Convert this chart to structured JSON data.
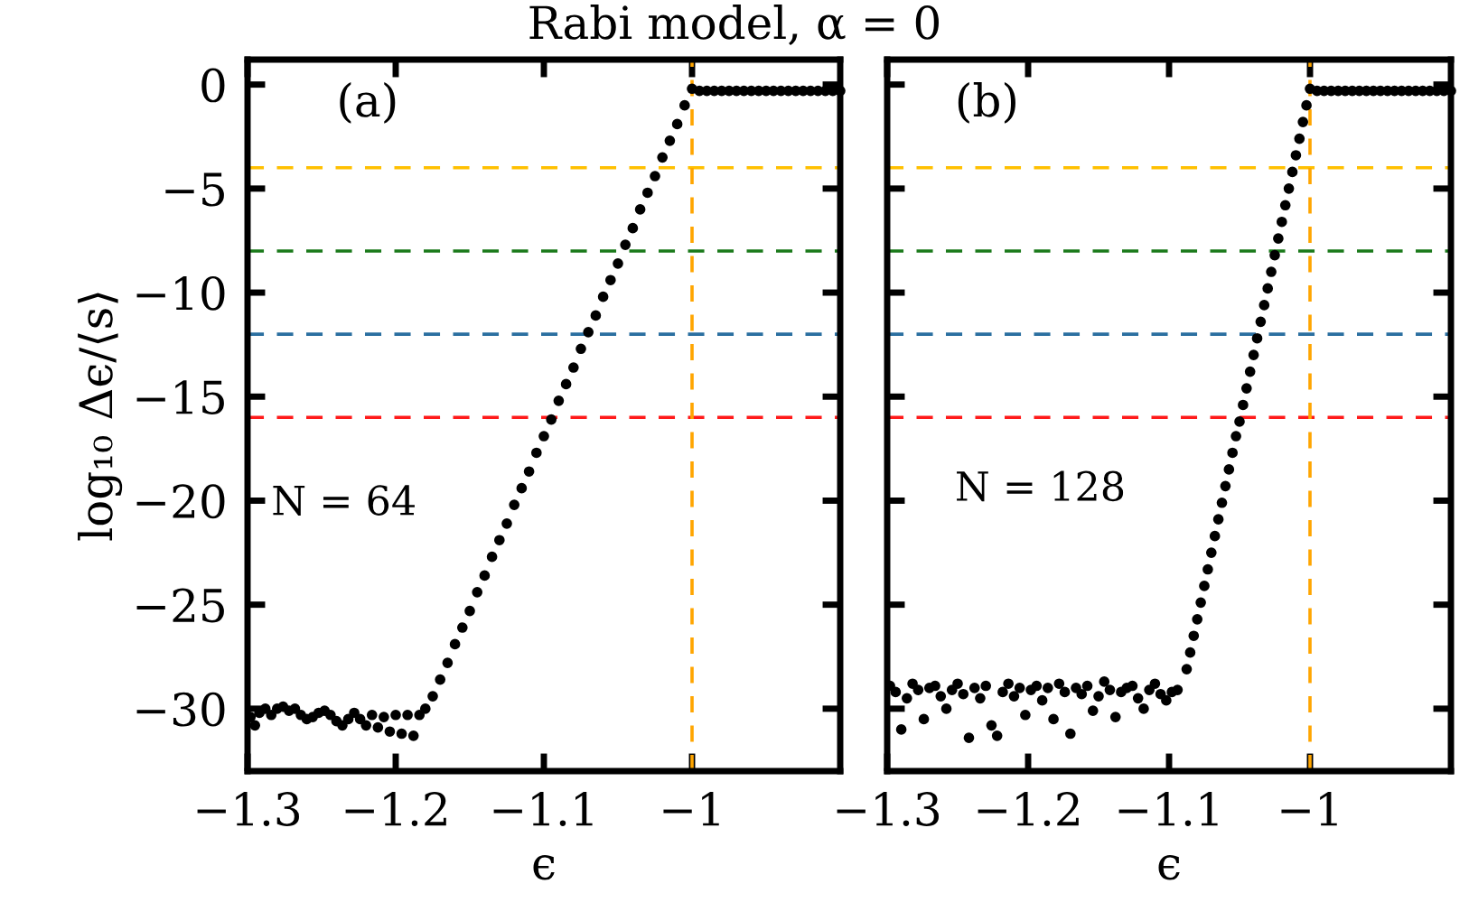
{
  "chart_data": [
    {
      "type": "scatter",
      "title": "Rabi model, α = 0",
      "xlabel": "ϵ",
      "ylabel": "log₁₀ Δϵ/⟨s⟩",
      "marker": "circle",
      "grid": false,
      "annotations": [
        "(a)",
        "N = 64"
      ],
      "xlim": [
        -1.3,
        -0.9
      ],
      "ylim": [
        -33,
        1.2
      ],
      "xticks": [
        {
          "value": -1.3,
          "label": "−1.3"
        },
        {
          "value": -1.2,
          "label": "−1.2"
        },
        {
          "value": -1.1,
          "label": "−1.1"
        },
        {
          "value": -1.0,
          "label": "−1"
        }
      ],
      "yticks": [
        {
          "value": 0,
          "label": "0"
        },
        {
          "value": -5,
          "label": "−5"
        },
        {
          "value": -10,
          "label": "−10"
        },
        {
          "value": -15,
          "label": "−15"
        },
        {
          "value": -20,
          "label": "−20"
        },
        {
          "value": -25,
          "label": "−25"
        },
        {
          "value": -30,
          "label": "−30"
        }
      ],
      "ref_lines": [
        {
          "axis": "y",
          "value": -4,
          "color": "#ffc000",
          "line_style": "dashed"
        },
        {
          "axis": "y",
          "value": -8,
          "color": "#1a7a1a",
          "line_style": "dashed"
        },
        {
          "axis": "y",
          "value": -12,
          "color": "#2a6fa0",
          "line_style": "dashed"
        },
        {
          "axis": "y",
          "value": -16,
          "color": "#ff1a1a",
          "line_style": "dashed"
        },
        {
          "axis": "x",
          "value": -1.0,
          "color": "#ffa500",
          "line_style": "dashed"
        }
      ],
      "series": [
        {
          "color": "#000000",
          "x": [
            -1.298,
            -1.295,
            -1.292,
            -1.288,
            -1.284,
            -1.28,
            -1.276,
            -1.272,
            -1.268,
            -1.264,
            -1.26,
            -1.256,
            -1.252,
            -1.248,
            -1.244,
            -1.24,
            -1.236,
            -1.232,
            -1.228,
            -1.224,
            -1.22,
            -1.216,
            -1.212,
            -1.208,
            -1.204,
            -1.2,
            -1.196,
            -1.192,
            -1.188,
            -1.184,
            -1.18,
            -1.175,
            -1.17,
            -1.165,
            -1.16,
            -1.155,
            -1.15,
            -1.145,
            -1.14,
            -1.135,
            -1.13,
            -1.125,
            -1.12,
            -1.115,
            -1.11,
            -1.105,
            -1.1,
            -1.095,
            -1.09,
            -1.085,
            -1.08,
            -1.075,
            -1.07,
            -1.065,
            -1.06,
            -1.055,
            -1.05,
            -1.045,
            -1.04,
            -1.035,
            -1.03,
            -1.025,
            -1.02,
            -1.015,
            -1.01,
            -1.005,
            -1.0,
            -0.995,
            -0.99,
            -0.985,
            -0.98,
            -0.975,
            -0.97,
            -0.965,
            -0.96,
            -0.955,
            -0.95,
            -0.945,
            -0.94,
            -0.935,
            -0.93,
            -0.925,
            -0.92,
            -0.915,
            -0.91,
            -0.905,
            -0.9
          ],
          "values": [
            -30.4,
            -30.8,
            -30.2,
            -30.0,
            -30.3,
            -30.0,
            -29.9,
            -30.1,
            -30.0,
            -30.3,
            -30.5,
            -30.4,
            -30.2,
            -30.1,
            -30.3,
            -30.6,
            -30.8,
            -30.5,
            -30.2,
            -30.5,
            -30.8,
            -30.3,
            -30.9,
            -30.4,
            -31.1,
            -30.3,
            -31.2,
            -30.3,
            -31.3,
            -30.3,
            -30.0,
            -29.4,
            -28.6,
            -27.8,
            -26.9,
            -26.1,
            -25.3,
            -24.4,
            -23.6,
            -22.7,
            -21.9,
            -21.1,
            -20.2,
            -19.4,
            -18.6,
            -17.7,
            -16.9,
            -16.1,
            -15.2,
            -14.4,
            -13.6,
            -12.7,
            -11.9,
            -11.1,
            -10.2,
            -9.4,
            -8.6,
            -7.7,
            -6.9,
            -6.0,
            -5.2,
            -4.4,
            -3.5,
            -2.7,
            -1.9,
            -1.0,
            -0.2,
            -0.3,
            -0.3,
            -0.3,
            -0.3,
            -0.3,
            -0.3,
            -0.3,
            -0.3,
            -0.3,
            -0.3,
            -0.3,
            -0.3,
            -0.3,
            -0.3,
            -0.3,
            -0.3,
            -0.3,
            -0.3,
            -0.3,
            -0.3
          ]
        }
      ]
    },
    {
      "type": "scatter",
      "xlabel": "ϵ",
      "marker": "circle",
      "grid": false,
      "tick_labels": "x",
      "annotations": [
        "(b)",
        "N = 128"
      ],
      "xlim": [
        -1.3,
        -0.9
      ],
      "ylim": [
        -33,
        1.2
      ],
      "xticks": [
        {
          "value": -1.3,
          "label": "−1.3"
        },
        {
          "value": -1.2,
          "label": "−1.2"
        },
        {
          "value": -1.1,
          "label": "−1.1"
        },
        {
          "value": -1.0,
          "label": "−1"
        }
      ],
      "yticks": [
        0,
        -5,
        -10,
        -15,
        -20,
        -25,
        -30
      ],
      "ref_lines": [
        {
          "axis": "y",
          "value": -4,
          "color": "#ffc000",
          "line_style": "dashed"
        },
        {
          "axis": "y",
          "value": -8,
          "color": "#1a7a1a",
          "line_style": "dashed"
        },
        {
          "axis": "y",
          "value": -12,
          "color": "#2a6fa0",
          "line_style": "dashed"
        },
        {
          "axis": "y",
          "value": -16,
          "color": "#ff1a1a",
          "line_style": "dashed"
        },
        {
          "axis": "x",
          "value": -1.0,
          "color": "#ffa500",
          "line_style": "dashed"
        }
      ],
      "series": [
        {
          "color": "#000000",
          "x": [
            -1.298,
            -1.294,
            -1.29,
            -1.286,
            -1.282,
            -1.278,
            -1.274,
            -1.27,
            -1.266,
            -1.262,
            -1.258,
            -1.254,
            -1.25,
            -1.246,
            -1.242,
            -1.238,
            -1.234,
            -1.23,
            -1.226,
            -1.222,
            -1.218,
            -1.214,
            -1.21,
            -1.206,
            -1.202,
            -1.198,
            -1.194,
            -1.19,
            -1.186,
            -1.182,
            -1.178,
            -1.174,
            -1.17,
            -1.166,
            -1.162,
            -1.158,
            -1.154,
            -1.15,
            -1.146,
            -1.142,
            -1.138,
            -1.134,
            -1.13,
            -1.126,
            -1.122,
            -1.118,
            -1.114,
            -1.11,
            -1.106,
            -1.102,
            -1.098,
            -1.094,
            -1.0875,
            -1.085,
            -1.0825,
            -1.08,
            -1.0775,
            -1.075,
            -1.0725,
            -1.07,
            -1.0675,
            -1.065,
            -1.0625,
            -1.06,
            -1.0575,
            -1.055,
            -1.0525,
            -1.05,
            -1.0475,
            -1.045,
            -1.0425,
            -1.04,
            -1.0375,
            -1.035,
            -1.0325,
            -1.03,
            -1.0275,
            -1.025,
            -1.0225,
            -1.02,
            -1.0175,
            -1.015,
            -1.0125,
            -1.01,
            -1.0075,
            -1.005,
            -1.0025,
            -1.0,
            -0.995,
            -0.99,
            -0.985,
            -0.98,
            -0.975,
            -0.97,
            -0.965,
            -0.96,
            -0.955,
            -0.95,
            -0.945,
            -0.94,
            -0.935,
            -0.93,
            -0.925,
            -0.92,
            -0.915,
            -0.91,
            -0.905,
            -0.9
          ],
          "values": [
            -28.9,
            -29.2,
            -31.0,
            -29.5,
            -28.8,
            -29.1,
            -30.5,
            -29.0,
            -28.9,
            -29.4,
            -30.0,
            -29.1,
            -28.8,
            -29.3,
            -31.4,
            -29.0,
            -29.5,
            -28.9,
            -30.8,
            -31.3,
            -29.2,
            -28.8,
            -29.4,
            -29.0,
            -30.3,
            -29.1,
            -28.9,
            -29.6,
            -29.0,
            -30.5,
            -28.8,
            -29.2,
            -31.2,
            -29.0,
            -29.3,
            -28.9,
            -30.1,
            -29.4,
            -28.7,
            -29.1,
            -30.4,
            -29.2,
            -29.0,
            -28.9,
            -29.5,
            -30.0,
            -29.1,
            -28.8,
            -29.3,
            -29.6,
            -29.2,
            -29.1,
            -28.1,
            -27.3,
            -26.5,
            -25.7,
            -24.9,
            -24.1,
            -23.3,
            -22.5,
            -21.7,
            -20.9,
            -20.1,
            -19.3,
            -18.5,
            -17.7,
            -16.9,
            -16.2,
            -15.4,
            -14.6,
            -13.8,
            -13.0,
            -12.2,
            -11.4,
            -10.6,
            -9.8,
            -9.0,
            -8.2,
            -7.4,
            -6.6,
            -5.8,
            -5.0,
            -4.2,
            -3.4,
            -2.6,
            -1.8,
            -1.0,
            -0.2,
            -0.3,
            -0.3,
            -0.3,
            -0.3,
            -0.3,
            -0.3,
            -0.3,
            -0.3,
            -0.3,
            -0.3,
            -0.3,
            -0.3,
            -0.3,
            -0.3,
            -0.3,
            -0.3,
            -0.3,
            -0.3,
            -0.3,
            -0.3
          ]
        }
      ]
    }
  ]
}
